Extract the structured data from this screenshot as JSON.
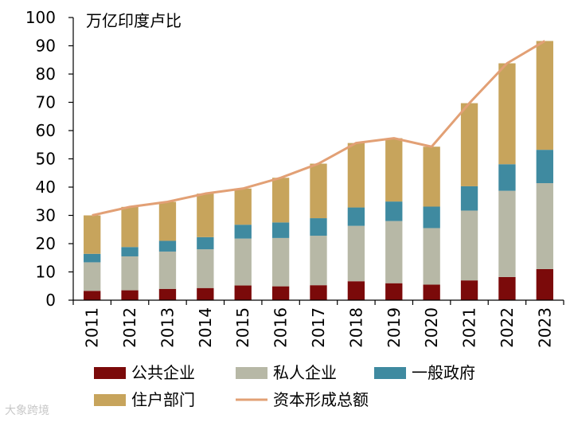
{
  "chart_data": {
    "type": "bar",
    "stacked": true,
    "unit_label": "万亿印度卢比",
    "categories": [
      "2011",
      "2012",
      "2013",
      "2014",
      "2015",
      "2016",
      "2017",
      "2018",
      "2019",
      "2020",
      "2021",
      "2022",
      "2023"
    ],
    "ylim": [
      0,
      100
    ],
    "yticks": [
      0,
      10,
      20,
      30,
      40,
      50,
      60,
      70,
      80,
      90,
      100
    ],
    "series": [
      {
        "name": "公共企业",
        "color": "#7b0a0a",
        "values": [
          3.3,
          3.5,
          4.0,
          4.3,
          5.2,
          4.9,
          5.3,
          6.7,
          6.0,
          5.5,
          7.0,
          8.2,
          11.0
        ]
      },
      {
        "name": "私人企业",
        "color": "#b7b8a6",
        "values": [
          10.1,
          12.0,
          13.2,
          13.7,
          16.6,
          17.1,
          17.5,
          19.6,
          22.0,
          20.0,
          24.7,
          30.5,
          30.4
        ]
      },
      {
        "name": "一般政府",
        "color": "#3f8aa0",
        "values": [
          3.0,
          3.3,
          3.8,
          4.3,
          4.9,
          5.5,
          6.2,
          6.5,
          6.9,
          7.6,
          8.6,
          9.4,
          11.8
        ]
      },
      {
        "name": "住户部门",
        "color": "#c7a45c",
        "values": [
          13.6,
          14.2,
          13.8,
          15.4,
          12.8,
          15.8,
          19.3,
          22.8,
          22.4,
          21.2,
          29.4,
          35.7,
          38.5
        ]
      }
    ],
    "line": {
      "name": "资本形成总额",
      "color": "#e2a075",
      "values": [
        30.0,
        33.0,
        34.8,
        37.7,
        39.5,
        43.3,
        48.3,
        55.6,
        57.3,
        54.3,
        69.7,
        83.8,
        91.7
      ]
    }
  },
  "watermark": "大象跨境"
}
